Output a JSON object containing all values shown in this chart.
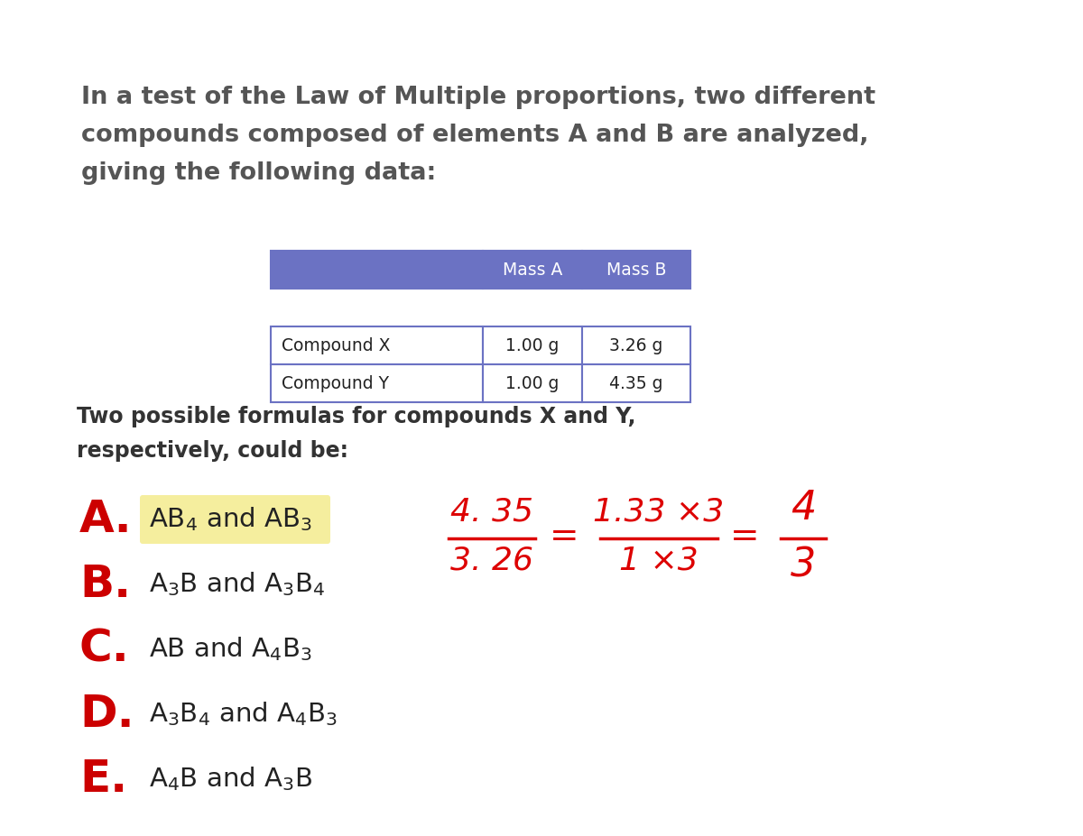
{
  "bg_color": "#ffffff",
  "title_text_lines": [
    "In a test of the Law of Multiple proportions, two different",
    "compounds composed of elements A and B are analyzed,",
    "giving the following data:"
  ],
  "title_color": "#555555",
  "title_fontsize": 19.5,
  "table_header_bg": "#6b72c3",
  "table_header_color": "#ffffff",
  "table_row_bg": "#ffffff",
  "table_border_color": "#6b72c3",
  "table_col_labels": [
    "",
    "Mass A",
    "Mass B"
  ],
  "table_rows": [
    [
      "Compound X",
      "1.00 g",
      "3.26 g"
    ],
    [
      "Compound Y",
      "1.00 g",
      "4.35 g"
    ]
  ],
  "subtitle_text_lines": [
    "Two possible formulas for compounds X and Y,",
    "respectively, could be:"
  ],
  "subtitle_fontsize": 17,
  "subtitle_color": "#333333",
  "answer_color": "#cc0000",
  "answer_letter_fontsize": 36,
  "answer_text_fontsize": 21,
  "answers": [
    {
      "letter": "A.",
      "text": "$\\mathregular{AB_4}$ and $\\mathregular{AB_3}$",
      "highlight": true
    },
    {
      "letter": "B.",
      "text": "$\\mathregular{A_3B}$ and $\\mathregular{A_3B_4}$",
      "highlight": false
    },
    {
      "letter": "C.",
      "text": "$\\mathregular{AB}$ and $\\mathregular{A_4B_3}$",
      "highlight": false
    },
    {
      "letter": "D.",
      "text": "$\\mathregular{A_3B_4}$ and $\\mathregular{A_4B_3}$",
      "highlight": false
    },
    {
      "letter": "E.",
      "text": "$\\mathregular{A_4B}$ and $\\mathregular{A_3B}$",
      "highlight": false
    }
  ],
  "handwritten_color": "#dd0000",
  "highlight_color": "#f5ee9e"
}
